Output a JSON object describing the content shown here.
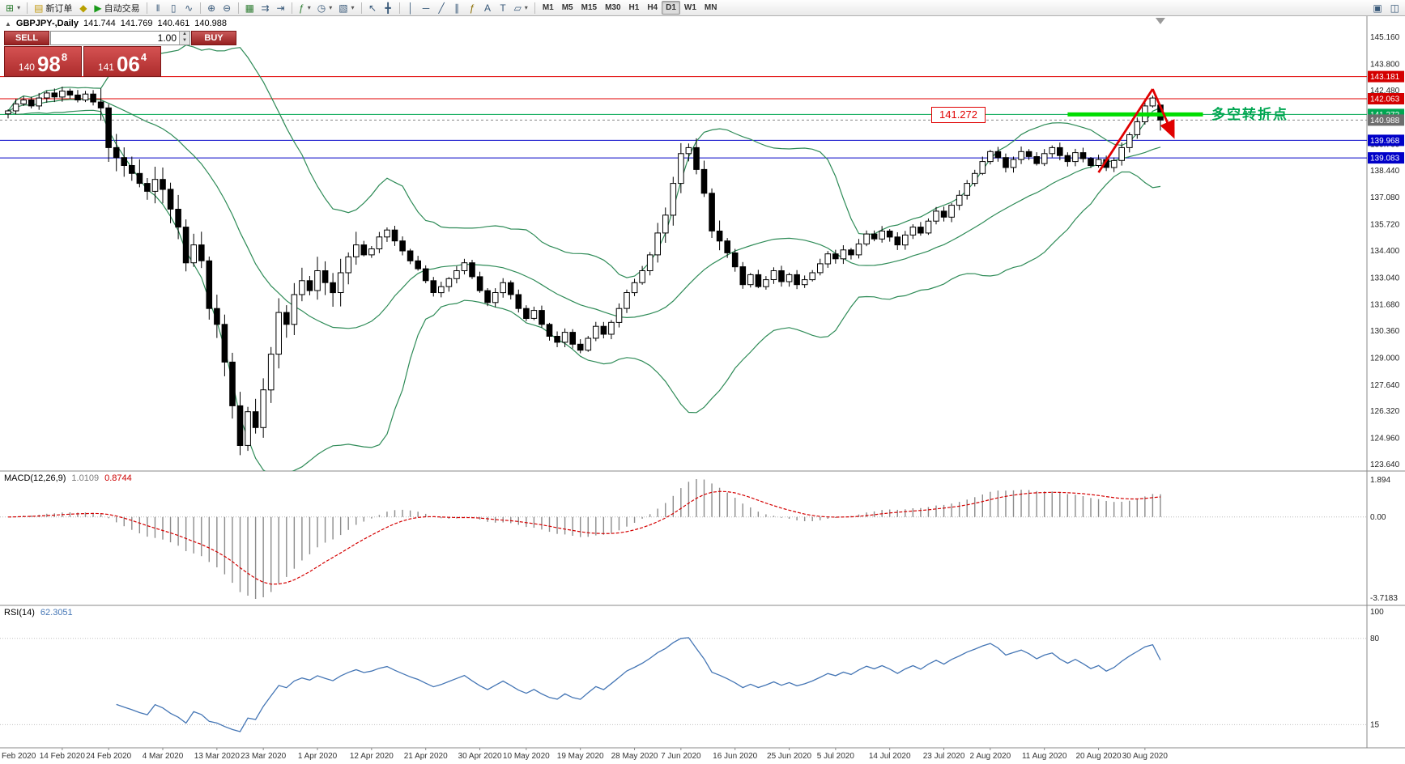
{
  "symbol_info": {
    "collapse_glyph": "▲",
    "symbol": "GBPJPY-,Daily",
    "open": "141.744",
    "high": "141.769",
    "low": "140.461",
    "close": "140.988"
  },
  "toolbar": {
    "groups": [
      {
        "items": [
          {
            "name": "new-chart-button",
            "glyph": "⊞",
            "color": "#2e7d32",
            "dd": true
          }
        ]
      },
      {
        "items": [
          {
            "name": "new-order-button",
            "glyph": "▤",
            "color": "#c49a12",
            "label": "新订单"
          },
          {
            "name": "metaeditor-button",
            "glyph": "◆",
            "color": "#b8a000"
          },
          {
            "name": "autotrading-button",
            "glyph": "▶",
            "color": "#1a9a1a",
            "label": "自动交易"
          }
        ]
      },
      {
        "items": [
          {
            "name": "bar-chart-button",
            "glyph": "‖"
          },
          {
            "name": "candlestick-button",
            "glyph": "▯"
          },
          {
            "name": "line-chart-button",
            "glyph": "∿"
          }
        ]
      },
      {
        "items": [
          {
            "name": "zoom-in-button",
            "glyph": "⊕"
          },
          {
            "name": "zoom-out-button",
            "glyph": "⊖"
          }
        ]
      },
      {
        "items": [
          {
            "name": "tile-windows-button",
            "glyph": "▦",
            "color": "#2e7d32"
          },
          {
            "name": "auto-scroll-button",
            "glyph": "⇉"
          },
          {
            "name": "chart-shift-button",
            "glyph": "⇥"
          }
        ]
      },
      {
        "items": [
          {
            "name": "indicators-button",
            "glyph": "ƒ",
            "color": "#2e7d32",
            "dd": true
          },
          {
            "name": "periods-button",
            "glyph": "◷",
            "dd": true
          },
          {
            "name": "templates-button",
            "glyph": "▧",
            "dd": true
          }
        ]
      },
      {
        "items": [
          {
            "name": "cursor-button",
            "glyph": "↖"
          },
          {
            "name": "crosshair-button",
            "glyph": "╋"
          }
        ]
      },
      {
        "items": [
          {
            "name": "vertical-line-button",
            "glyph": "│"
          },
          {
            "name": "horizontal-line-button",
            "glyph": "─"
          },
          {
            "name": "trendline-button",
            "glyph": "╱"
          },
          {
            "name": "channel-button",
            "glyph": "∥"
          },
          {
            "name": "fibonacci-button",
            "glyph": "ƒ",
            "color": "#8a6d00"
          },
          {
            "name": "text-button",
            "glyph": "A"
          },
          {
            "name": "arrow-tools-button",
            "glyph": "T"
          },
          {
            "name": "shapes-button",
            "glyph": "▱",
            "dd": true
          }
        ]
      }
    ],
    "timeframes": {
      "labels": [
        "M1",
        "M5",
        "M15",
        "M30",
        "H1",
        "H4",
        "D1",
        "W1",
        "MN"
      ],
      "active": "D1"
    },
    "right_items": [
      {
        "name": "window-list-button",
        "glyph": "▣"
      },
      {
        "name": "help-button",
        "glyph": "◫"
      }
    ]
  },
  "trade_panel": {
    "sell_label": "SELL",
    "buy_label": "BUY",
    "volume": "1.00",
    "sell_price": {
      "main": "140",
      "big": "98",
      "pip": "8"
    },
    "buy_price": {
      "main": "141",
      "big": "06",
      "pip": "4"
    }
  },
  "annotations": {
    "level_label": "141.272",
    "pivot_text": "多空转折点"
  },
  "indicators": {
    "macd": {
      "title": "MACD(12,26,9)",
      "value_main": "1.0109",
      "value_signal": "0.8744",
      "axis": [
        "1.894",
        "0.00",
        "-3.7183"
      ],
      "fast": 12,
      "slow": 26,
      "signal": 9
    },
    "rsi": {
      "title": "RSI(14)",
      "value": "62.3051",
      "period": 14,
      "axis": [
        {
          "label": "100",
          "value": 100
        },
        {
          "label": "80",
          "value": 80
        },
        {
          "label": "15",
          "value": 15
        }
      ],
      "levels": [
        80,
        15
      ]
    }
  },
  "chart_data": {
    "type": "candlestick",
    "symbol": "GBPJPY-",
    "timeframe": "Daily",
    "first_open": 141.3,
    "closes": [
      141.45,
      141.8,
      142.0,
      141.7,
      142.1,
      142.35,
      142.15,
      142.45,
      142.25,
      142.0,
      142.3,
      141.9,
      141.6,
      139.6,
      139.1,
      138.7,
      138.3,
      137.8,
      137.4,
      138.0,
      137.5,
      136.5,
      135.6,
      133.8,
      134.7,
      133.9,
      131.5,
      130.7,
      128.8,
      126.6,
      124.6,
      126.3,
      125.5,
      127.4,
      129.2,
      131.3,
      130.7,
      132.2,
      132.9,
      132.4,
      133.4,
      132.8,
      132.3,
      133.3,
      134.1,
      134.7,
      134.2,
      134.5,
      135.1,
      135.45,
      134.9,
      134.4,
      133.9,
      133.5,
      132.9,
      132.3,
      132.6,
      133.0,
      133.4,
      133.8,
      133.1,
      132.4,
      131.8,
      132.3,
      132.8,
      132.2,
      131.5,
      131.0,
      131.4,
      130.7,
      130.1,
      129.8,
      130.3,
      129.7,
      129.4,
      130.0,
      130.6,
      130.2,
      130.8,
      131.5,
      132.3,
      132.8,
      133.4,
      134.2,
      135.3,
      136.2,
      137.8,
      139.3,
      139.6,
      138.5,
      137.3,
      135.4,
      134.9,
      134.3,
      133.6,
      132.7,
      133.2,
      132.6,
      132.95,
      133.4,
      132.85,
      133.2,
      132.7,
      132.95,
      133.3,
      133.75,
      134.25,
      134.0,
      134.45,
      134.2,
      134.75,
      135.25,
      135.0,
      135.4,
      135.1,
      134.7,
      135.2,
      135.6,
      135.3,
      135.9,
      136.4,
      136.1,
      136.7,
      137.2,
      137.8,
      138.3,
      138.9,
      139.4,
      139.1,
      138.6,
      139.0,
      139.4,
      139.15,
      138.8,
      139.3,
      139.6,
      139.2,
      138.9,
      139.35,
      139.05,
      138.7,
      139.0,
      138.6,
      138.95,
      139.6,
      140.25,
      140.9,
      141.7,
      142.1,
      140.99
    ],
    "last_bar": {
      "open": 141.744,
      "high": 141.769,
      "low": 140.461,
      "close": 140.988
    },
    "bollinger": {
      "period": 20,
      "deviation": 2
    },
    "bid_price": 140.988,
    "y_axis_labels": [
      "145.160",
      "143.800",
      "142.480",
      "141.120",
      "139.760",
      "138.440",
      "137.080",
      "135.720",
      "134.400",
      "133.040",
      "131.680",
      "130.360",
      "129.000",
      "127.640",
      "126.320",
      "124.960",
      "123.640"
    ],
    "levels": [
      {
        "price": 143.181,
        "label": "143.181",
        "color": "red"
      },
      {
        "price": 142.063,
        "label": "142.063",
        "color": "red"
      },
      {
        "price": 141.272,
        "label": "141.272",
        "color": "green"
      },
      {
        "price": 140.988,
        "label": "140.988",
        "color": "gray",
        "style": "bid"
      },
      {
        "price": 139.968,
        "label": "139.968",
        "color": "blue"
      },
      {
        "price": 139.083,
        "label": "139.083",
        "color": "blue"
      }
    ],
    "highlight_segment": {
      "price": 141.272,
      "from_bar": 137,
      "to_bar": 154.5
    },
    "trend_arrow": {
      "points": [
        {
          "bar": 141,
          "price": 138.35
        },
        {
          "bar": 148,
          "price": 142.55
        },
        {
          "bar": 150.6,
          "price": 140.25
        }
      ]
    },
    "x_axis_labels": [
      {
        "text": "Feb 2020",
        "i": 0
      },
      {
        "text": "14 Feb 2020",
        "i": 7
      },
      {
        "text": "24 Feb 2020",
        "i": 13
      },
      {
        "text": "4 Mar 2020",
        "i": 20
      },
      {
        "text": "13 Mar 2020",
        "i": 27
      },
      {
        "text": "23 Mar 2020",
        "i": 33
      },
      {
        "text": "1 Apr 2020",
        "i": 40
      },
      {
        "text": "12 Apr 2020",
        "i": 47
      },
      {
        "text": "21 Apr 2020",
        "i": 54
      },
      {
        "text": "30 Apr 2020",
        "i": 61
      },
      {
        "text": "10 May 2020",
        "i": 67
      },
      {
        "text": "19 May 2020",
        "i": 74
      },
      {
        "text": "28 May 2020",
        "i": 81
      },
      {
        "text": "7 Jun 2020",
        "i": 87
      },
      {
        "text": "16 Jun 2020",
        "i": 94
      },
      {
        "text": "25 Jun 2020",
        "i": 101
      },
      {
        "text": "5 Jul 2020",
        "i": 107
      },
      {
        "text": "14 Jul 2020",
        "i": 114
      },
      {
        "text": "23 Jul 2020",
        "i": 121
      },
      {
        "text": "2 Aug 2020",
        "i": 127
      },
      {
        "text": "11 Aug 2020",
        "i": 134
      },
      {
        "text": "20 Aug 2020",
        "i": 141
      },
      {
        "text": "30 Aug 2020",
        "i": 147
      }
    ],
    "colors": {
      "up": "#ffffff",
      "down": "#000000",
      "outline": "#000000",
      "bollinger": "#2e8b57",
      "macd_hist": "#8c8c8c",
      "macd_signal": "#d40000",
      "rsi": "#4576b5",
      "level_red": "#e00000",
      "level_blue": "#0000c8",
      "level_green": "#00a651",
      "highlight": "#00dd00",
      "bid": "#888888",
      "arrow": "#e00000",
      "tag_red": "#d40000",
      "tag_blue": "#0000c8",
      "tag_green": "#00a651",
      "tag_gray": "#6e6e6e"
    }
  }
}
